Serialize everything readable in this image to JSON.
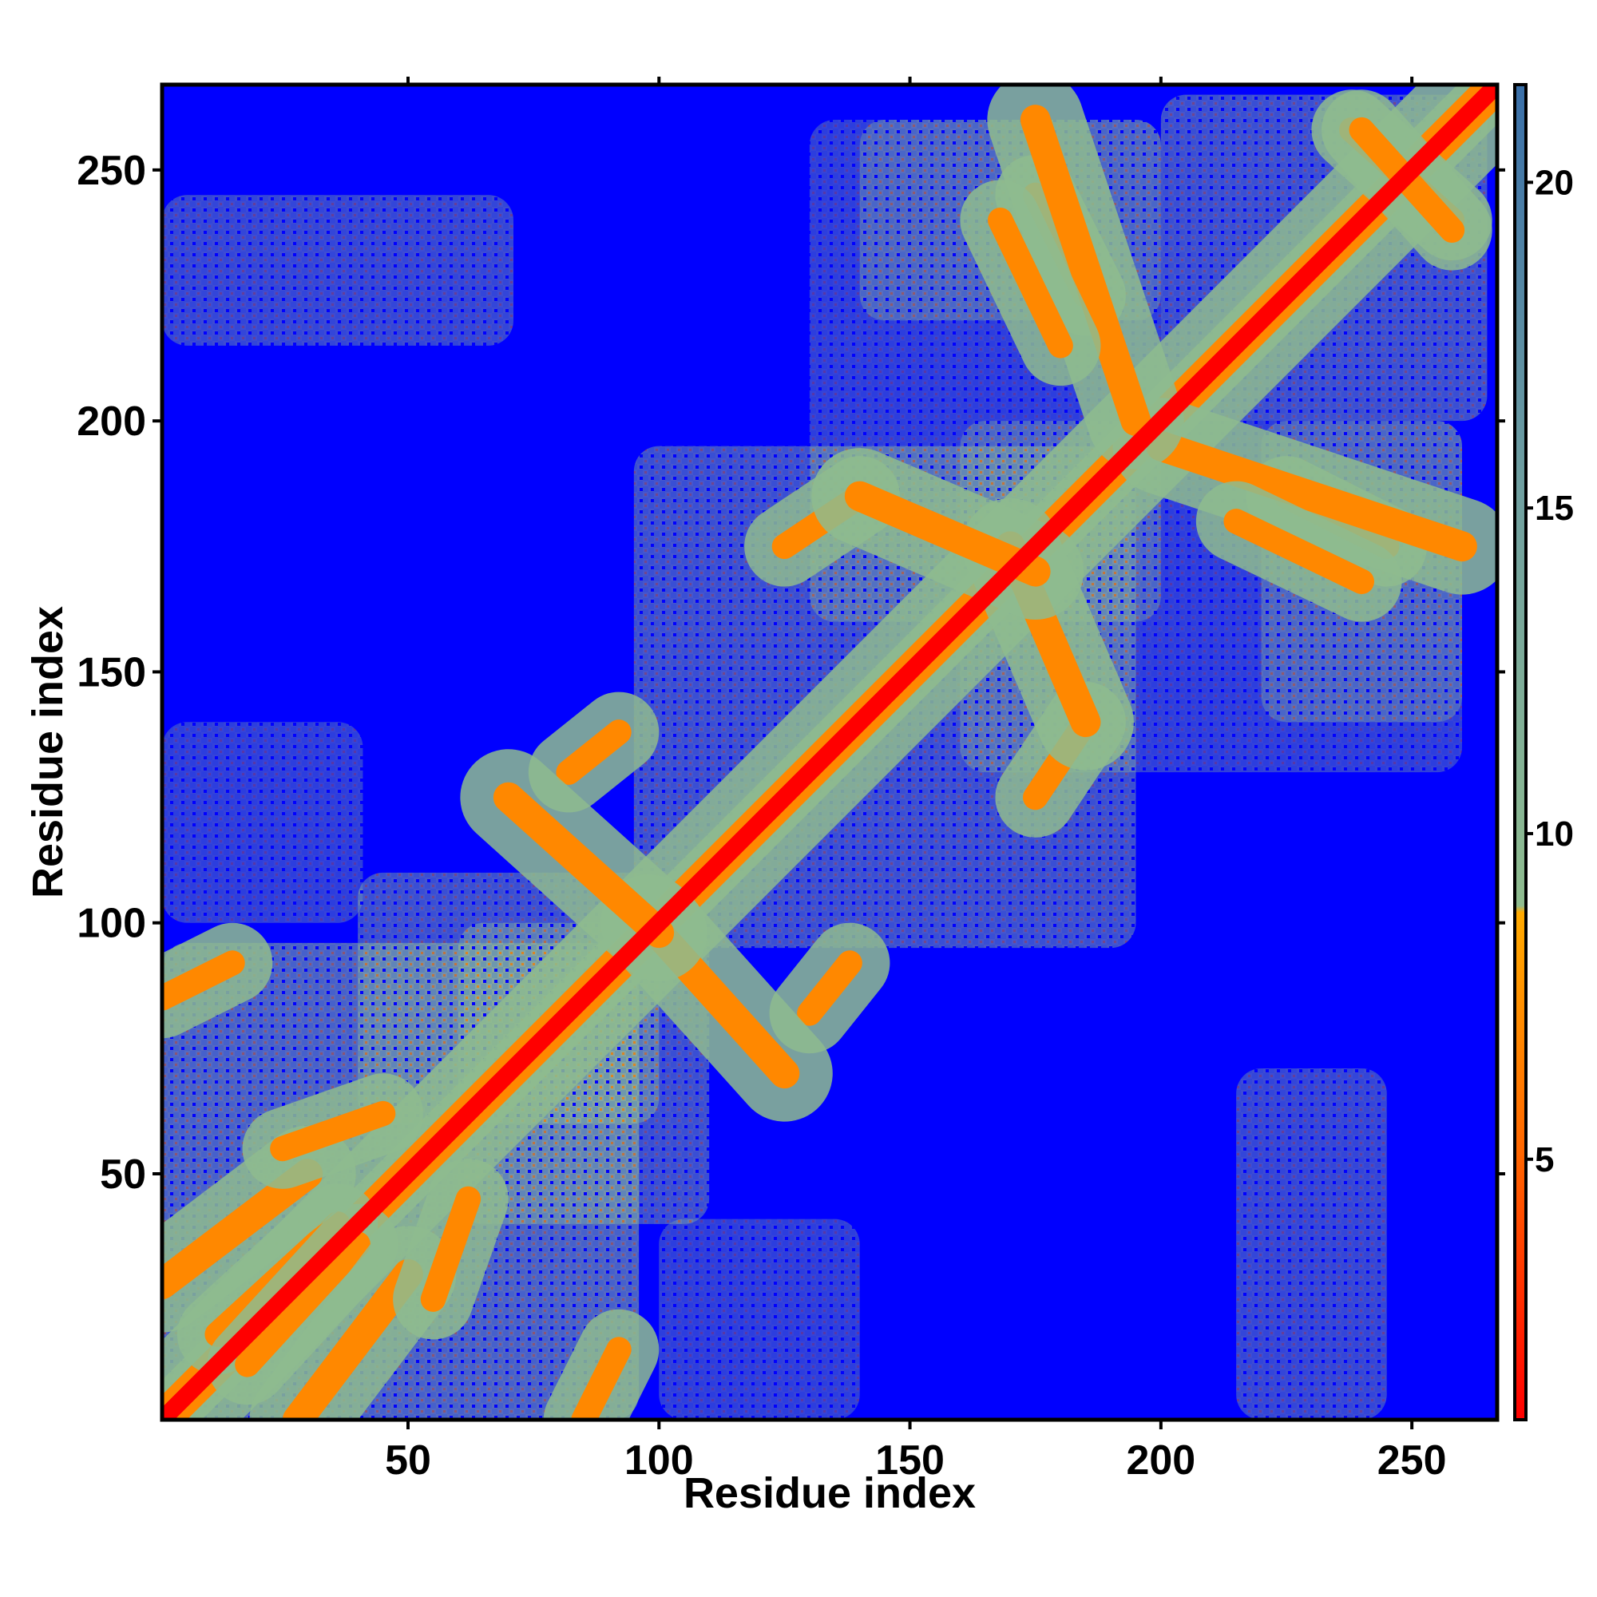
{
  "chart_data": {
    "type": "heatmap",
    "title": "",
    "xlabel": "Residue index",
    "ylabel": "Residue index",
    "xlim": [
      1,
      267
    ],
    "ylim": [
      1,
      267
    ],
    "x_ticks": [
      50,
      100,
      150,
      200,
      250
    ],
    "y_ticks": [
      50,
      100,
      150,
      200,
      250
    ],
    "grid": false,
    "colorbar": {
      "range": [
        1,
        21.5
      ],
      "ticks": [
        5,
        10,
        15,
        20
      ],
      "colors": {
        "low": "#ff0000",
        "mid": "#ff9900",
        "high_start": "#8fbc8f",
        "high": "#3a6fa8",
        "background": "#0000ff"
      }
    },
    "contact_segments": [
      {
        "x1": 1,
        "y1": 1,
        "x2": 267,
        "y2": 267,
        "w": 3.5,
        "cls": "core"
      },
      {
        "x1": 1,
        "y1": 1,
        "x2": 267,
        "y2": 267,
        "w": 7,
        "cls": "mid"
      },
      {
        "x1": 12,
        "y1": 18,
        "x2": 36,
        "y2": 40,
        "w": 5,
        "cls": "mid"
      },
      {
        "x1": 18,
        "y1": 12,
        "x2": 40,
        "y2": 36,
        "w": 5,
        "cls": "mid"
      },
      {
        "x1": 1,
        "y1": 28,
        "x2": 30,
        "y2": 50,
        "w": 6,
        "cls": "mid"
      },
      {
        "x1": 28,
        "y1": 1,
        "x2": 50,
        "y2": 30,
        "w": 6,
        "cls": "mid"
      },
      {
        "x1": 25,
        "y1": 55,
        "x2": 45,
        "y2": 62,
        "w": 5,
        "cls": "mid"
      },
      {
        "x1": 55,
        "y1": 25,
        "x2": 62,
        "y2": 45,
        "w": 5,
        "cls": "mid"
      },
      {
        "x1": 1,
        "y1": 85,
        "x2": 15,
        "y2": 92,
        "w": 5,
        "cls": "mid"
      },
      {
        "x1": 85,
        "y1": 1,
        "x2": 92,
        "y2": 15,
        "w": 5,
        "cls": "mid"
      },
      {
        "x1": 82,
        "y1": 130,
        "x2": 92,
        "y2": 138,
        "w": 5,
        "cls": "mid"
      },
      {
        "x1": 130,
        "y1": 82,
        "x2": 138,
        "y2": 92,
        "w": 5,
        "cls": "mid"
      },
      {
        "x1": 98,
        "y1": 100,
        "x2": 125,
        "y2": 70,
        "w": 6,
        "cls": "mid"
      },
      {
        "x1": 100,
        "y1": 98,
        "x2": 70,
        "y2": 125,
        "w": 6,
        "cls": "mid"
      },
      {
        "x1": 125,
        "y1": 175,
        "x2": 140,
        "y2": 185,
        "w": 5,
        "cls": "mid"
      },
      {
        "x1": 175,
        "y1": 125,
        "x2": 185,
        "y2": 140,
        "w": 5,
        "cls": "mid"
      },
      {
        "x1": 170,
        "y1": 175,
        "x2": 185,
        "y2": 140,
        "w": 6,
        "cls": "mid"
      },
      {
        "x1": 175,
        "y1": 170,
        "x2": 140,
        "y2": 185,
        "w": 6,
        "cls": "mid"
      },
      {
        "x1": 175,
        "y1": 245,
        "x2": 185,
        "y2": 225,
        "w": 5,
        "cls": "mid"
      },
      {
        "x1": 245,
        "y1": 175,
        "x2": 225,
        "y2": 185,
        "w": 5,
        "cls": "mid"
      },
      {
        "x1": 238,
        "y1": 258,
        "x2": 258,
        "y2": 240,
        "w": 5,
        "cls": "mid"
      },
      {
        "x1": 258,
        "y1": 238,
        "x2": 240,
        "y2": 258,
        "w": 5,
        "cls": "mid"
      },
      {
        "x1": 200,
        "y1": 195,
        "x2": 260,
        "y2": 175,
        "w": 6,
        "cls": "mid"
      },
      {
        "x1": 195,
        "y1": 200,
        "x2": 175,
        "y2": 260,
        "w": 6,
        "cls": "mid"
      },
      {
        "x1": 168,
        "y1": 240,
        "x2": 180,
        "y2": 215,
        "w": 5,
        "cls": "mid"
      },
      {
        "x1": 240,
        "y1": 168,
        "x2": 215,
        "y2": 180,
        "w": 5,
        "cls": "mid"
      }
    ],
    "halo_regions": [
      {
        "x": 1,
        "y": 1,
        "w": 95,
        "h": 95,
        "o": 0.55
      },
      {
        "x": 40,
        "y": 60,
        "w": 60,
        "h": 50,
        "o": 0.45
      },
      {
        "x": 60,
        "y": 40,
        "w": 50,
        "h": 60,
        "o": 0.45
      },
      {
        "x": 1,
        "y": 100,
        "w": 40,
        "h": 40,
        "o": 0.35
      },
      {
        "x": 100,
        "y": 1,
        "w": 40,
        "h": 40,
        "o": 0.35
      },
      {
        "x": 95,
        "y": 95,
        "w": 100,
        "h": 100,
        "o": 0.45
      },
      {
        "x": 1,
        "y": 215,
        "w": 70,
        "h": 30,
        "o": 0.4
      },
      {
        "x": 215,
        "y": 1,
        "w": 30,
        "h": 70,
        "o": 0.4
      },
      {
        "x": 130,
        "y": 160,
        "w": 70,
        "h": 100,
        "o": 0.35
      },
      {
        "x": 160,
        "y": 130,
        "w": 100,
        "h": 70,
        "o": 0.35
      },
      {
        "x": 200,
        "y": 200,
        "w": 65,
        "h": 65,
        "o": 0.45
      },
      {
        "x": 220,
        "y": 140,
        "w": 40,
        "h": 60,
        "o": 0.35
      },
      {
        "x": 140,
        "y": 220,
        "w": 60,
        "h": 40,
        "o": 0.35
      }
    ]
  }
}
